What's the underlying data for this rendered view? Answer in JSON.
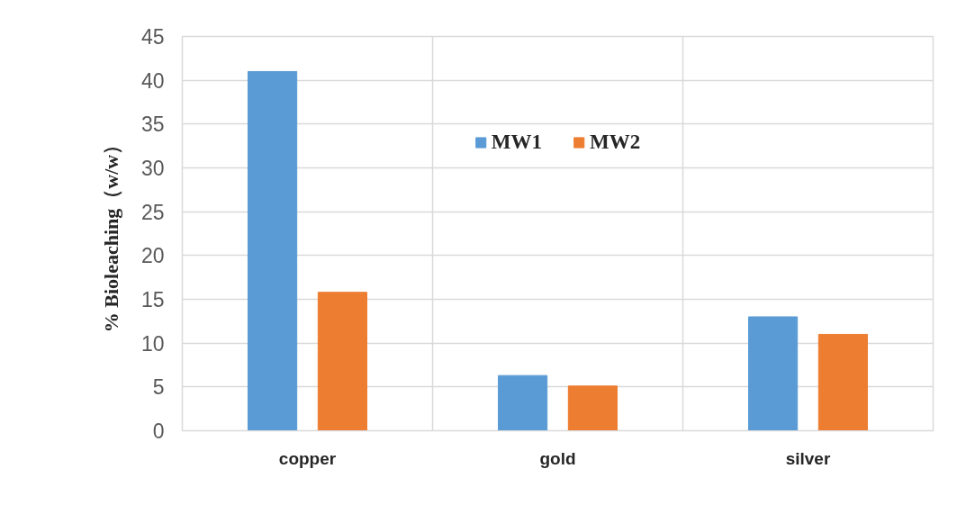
{
  "chart_data": {
    "type": "bar",
    "categories": [
      "copper",
      "gold",
      "silver"
    ],
    "series": [
      {
        "name": "MW1",
        "color": "#5b9bd5",
        "values": [
          41,
          6.3,
          13
        ]
      },
      {
        "name": "MW2",
        "color": "#ed7d31",
        "values": [
          15.8,
          5.1,
          11
        ]
      }
    ],
    "ylabel": "% Bioleaching（w/w）",
    "ylim": [
      0,
      45
    ],
    "yticks": [
      0,
      5,
      10,
      15,
      20,
      25,
      30,
      35,
      40,
      45
    ],
    "grid": true,
    "legend": "top"
  }
}
